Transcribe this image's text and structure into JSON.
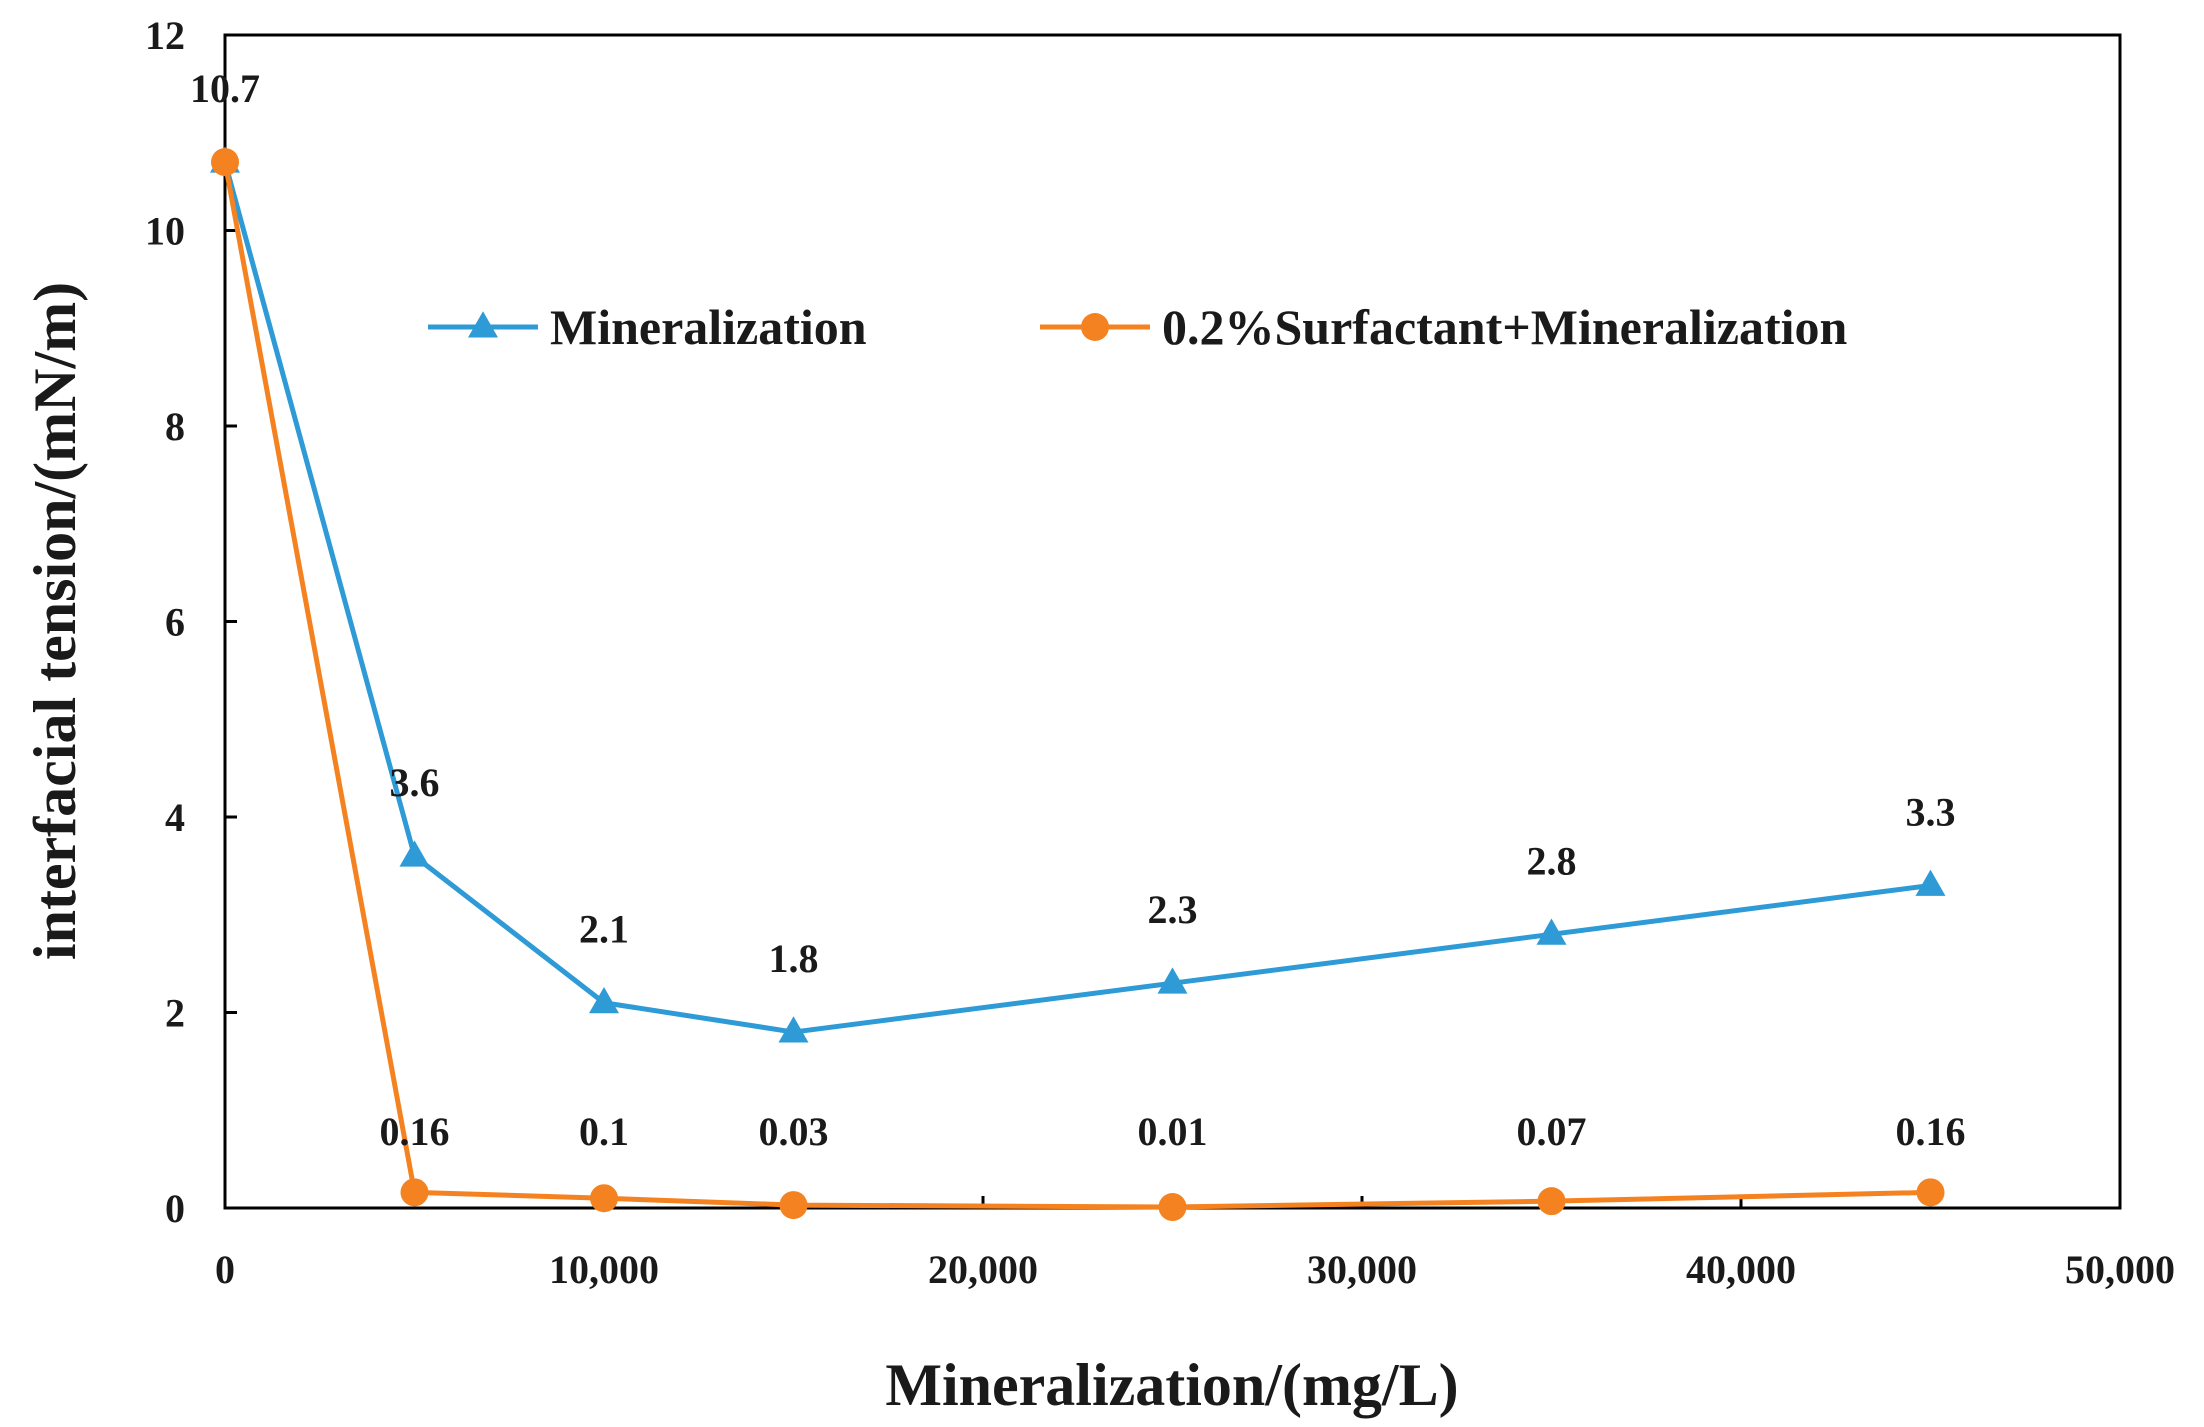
{
  "chart_data": {
    "type": "line",
    "xlabel": "Mineralization/(mg/L)",
    "ylabel": "interfacial tension/(mN/m)",
    "xlim": [
      0,
      50000
    ],
    "ylim": [
      0,
      12
    ],
    "x_ticks": [
      0,
      10000,
      20000,
      30000,
      40000,
      50000
    ],
    "x_tick_labels": [
      "0",
      "10,000",
      "20,000",
      "30,000",
      "40,000",
      "50,000"
    ],
    "y_ticks": [
      0,
      2,
      4,
      6,
      8,
      10,
      12
    ],
    "y_tick_labels": [
      "0",
      "2",
      "4",
      "6",
      "8",
      "10",
      "12"
    ],
    "grid": false,
    "legend_position": "top",
    "series": [
      {
        "name": "Mineralization",
        "color": "#2e9bd6",
        "marker": "triangle",
        "x": [
          0,
          5000,
          10000,
          15000,
          25000,
          35000,
          45000
        ],
        "y": [
          10.7,
          3.6,
          2.1,
          1.8,
          2.3,
          2.8,
          3.3
        ],
        "labels": [
          "10.7",
          "3.6",
          "2.1",
          "1.8",
          "2.3",
          "2.8",
          "3.3"
        ]
      },
      {
        "name": "0.2%Surfactant+Mineralization",
        "color": "#f58220",
        "marker": "circle",
        "x": [
          0,
          5000,
          10000,
          15000,
          25000,
          35000,
          45000
        ],
        "y": [
          10.7,
          0.16,
          0.1,
          0.03,
          0.01,
          0.07,
          0.16
        ],
        "labels": [
          "",
          "0.16",
          "0.1",
          "0.03",
          "0.01",
          "0.07",
          "0.16"
        ]
      }
    ]
  }
}
